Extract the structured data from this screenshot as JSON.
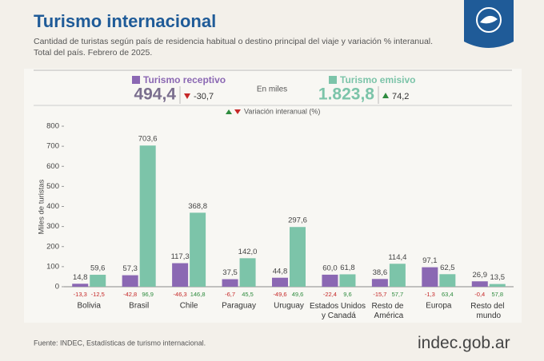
{
  "chart_data": {
    "type": "bar",
    "title": "Turismo internacional",
    "subtitle": [
      "Cantidad de turistas según país de residencia habitual o destino principal del viaje y variación % interanual.",
      "Total del país. Febrero de 2025."
    ],
    "unit_note": "En miles",
    "change_legend": "Variación interanual (%)",
    "y_label": "Miles de turistas",
    "source": "Fuente: INDEC, Estadísticas de turismo internacional.",
    "brand": {
      "main": "indec",
      "suffix": ".gob.ar"
    },
    "categories": [
      "Bolivia",
      "Brasil",
      "Chile",
      "Paraguay",
      "Uruguay",
      "Estados Unidos y Canadá",
      "Resto de América",
      "Europa",
      "Resto del mundo"
    ],
    "ylim": [
      0,
      800
    ],
    "yticks": [
      0,
      100,
      200,
      300,
      400,
      500,
      600,
      700,
      800
    ],
    "up_color": "#2e8b3e",
    "down_color": "#c62828",
    "series": [
      {
        "name": "Turismo receptivo",
        "color": "#8b68b3",
        "total": 494.4,
        "total_label": "494,4",
        "total_change": -30.7,
        "total_change_label": "-30,7",
        "values": [
          14.8,
          57.3,
          117.3,
          37.5,
          44.8,
          60.0,
          38.6,
          97.1,
          26.9
        ],
        "value_labels": [
          "14,8",
          "57,3",
          "117,3",
          "37,5",
          "44,8",
          "60,0",
          "38,6",
          "97,1",
          "26,9"
        ],
        "changes": [
          -13.3,
          -42.8,
          -46.3,
          -6.7,
          -49.6,
          -22.4,
          -15.7,
          -1.3,
          -0.4
        ],
        "change_labels": [
          "-13,3",
          "-42,8",
          "-46,3",
          "-6,7",
          "-49,6",
          "-22,4",
          "-15,7",
          "-1,3",
          "-0,4"
        ]
      },
      {
        "name": "Turismo emisivo",
        "color": "#7cc4a9",
        "total": 1823.8,
        "total_label": "1.823,8",
        "total_change": 74.2,
        "total_change_label": "74,2",
        "values": [
          59.6,
          703.6,
          368.8,
          142.0,
          297.6,
          61.8,
          114.4,
          62.5,
          13.5
        ],
        "value_labels": [
          "59,6",
          "703,6",
          "368,8",
          "142,0",
          "297,6",
          "61,8",
          "114,4",
          "62,5",
          "13,5"
        ],
        "changes": [
          -12.5,
          96.9,
          146.8,
          45.5,
          49.6,
          9.6,
          57.7,
          63.4,
          57.8
        ],
        "change_labels": [
          "-12,5",
          "96,9",
          "146,8",
          "45,5",
          "49,6",
          "9,6",
          "57,7",
          "63,4",
          "57,8"
        ]
      }
    ]
  }
}
